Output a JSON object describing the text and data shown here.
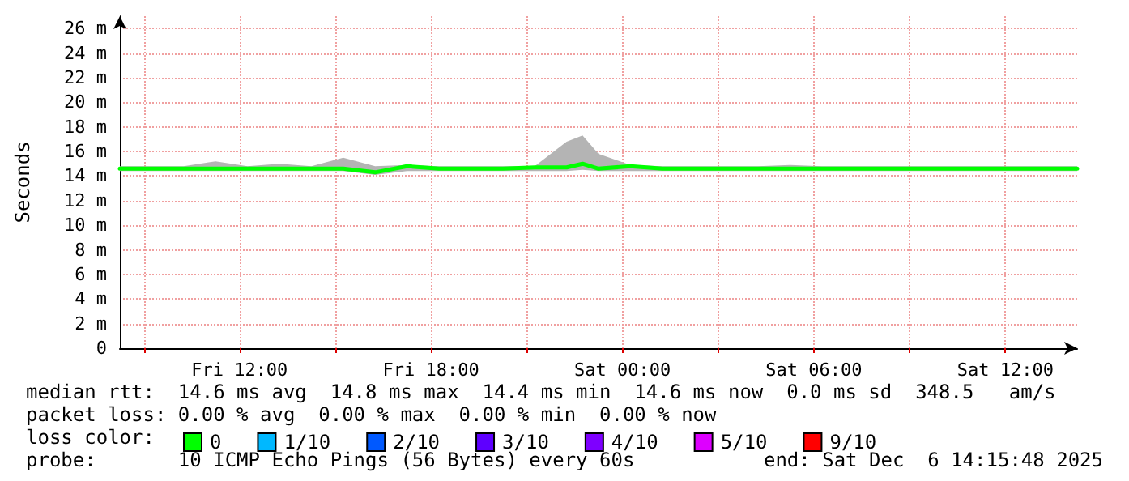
{
  "chart_data": {
    "type": "line",
    "ylabel": "Seconds",
    "legend_title": "loss color:",
    "legend": "bottom",
    "grid": true,
    "marker": "none",
    "line_style": "solid",
    "x": [
      "2025-12-05T08:15",
      "2025-12-05T09:15",
      "2025-12-05T10:15",
      "2025-12-05T11:15",
      "2025-12-05T12:15",
      "2025-12-05T13:15",
      "2025-12-05T14:15",
      "2025-12-05T15:15",
      "2025-12-05T16:15",
      "2025-12-05T17:15",
      "2025-12-05T18:15",
      "2025-12-05T19:15",
      "2025-12-05T20:15",
      "2025-12-05T21:15",
      "2025-12-05T22:15",
      "2025-12-05T22:45",
      "2025-12-05T23:15",
      "2025-12-06T00:15",
      "2025-12-06T01:15",
      "2025-12-06T02:15",
      "2025-12-06T03:15",
      "2025-12-06T04:15",
      "2025-12-06T05:15",
      "2025-12-06T06:15",
      "2025-12-06T07:15",
      "2025-12-06T08:15",
      "2025-12-06T09:15",
      "2025-12-06T10:15",
      "2025-12-06T11:15",
      "2025-12-06T12:15",
      "2025-12-06T13:15",
      "2025-12-06T14:15"
    ],
    "xlim": [
      "2025-12-05T08:15",
      "2025-12-06T14:15"
    ],
    "xticks": [
      {
        "value": "2025-12-05T09:00",
        "label": null
      },
      {
        "value": "2025-12-05T12:00",
        "label": "Fri 12:00"
      },
      {
        "value": "2025-12-05T15:00",
        "label": null
      },
      {
        "value": "2025-12-05T18:00",
        "label": "Fri 18:00"
      },
      {
        "value": "2025-12-05T21:00",
        "label": null
      },
      {
        "value": "2025-12-06T00:00",
        "label": "Sat 00:00"
      },
      {
        "value": "2025-12-06T03:00",
        "label": null
      },
      {
        "value": "2025-12-06T06:00",
        "label": "Sat 06:00"
      },
      {
        "value": "2025-12-06T09:00",
        "label": null
      },
      {
        "value": "2025-12-06T12:00",
        "label": "Sat 12:00"
      }
    ],
    "ylim": [
      0,
      27
    ],
    "yticks": [
      0,
      {
        "value": 2,
        "label": "2 m"
      },
      {
        "value": 4,
        "label": "4 m"
      },
      {
        "value": 6,
        "label": "6 m"
      },
      {
        "value": 8,
        "label": "8 m"
      },
      {
        "value": 10,
        "label": "10 m"
      },
      {
        "value": 12,
        "label": "12 m"
      },
      {
        "value": 14,
        "label": "14 m"
      },
      {
        "value": 16,
        "label": "16 m"
      },
      {
        "value": 18,
        "label": "18 m"
      },
      {
        "value": 20,
        "label": "20 m"
      },
      {
        "value": 22,
        "label": "22 m"
      },
      {
        "value": 24,
        "label": "24 m"
      },
      {
        "value": 26,
        "label": "26 m"
      }
    ],
    "series": [
      {
        "name": "0",
        "color": "#00ff00",
        "values": [
          14.6,
          14.6,
          14.6,
          14.6,
          14.6,
          14.6,
          14.6,
          14.6,
          14.3,
          14.8,
          14.6,
          14.6,
          14.6,
          14.7,
          14.7,
          15.0,
          14.6,
          14.8,
          14.6,
          14.6,
          14.6,
          14.6,
          14.6,
          14.6,
          14.6,
          14.6,
          14.6,
          14.6,
          14.6,
          14.6,
          14.6,
          14.6
        ],
        "lower": [
          14.4,
          14.4,
          14.4,
          14.4,
          14.4,
          14.4,
          14.4,
          14.4,
          14.1,
          14.4,
          14.4,
          14.4,
          14.4,
          14.4,
          14.4,
          14.5,
          14.4,
          14.4,
          14.4,
          14.4,
          14.4,
          14.4,
          14.4,
          14.4,
          14.4,
          14.4,
          14.4,
          14.4,
          14.4,
          14.4,
          14.4,
          14.4
        ],
        "upper": [
          14.8,
          14.8,
          14.8,
          15.2,
          14.8,
          15.0,
          14.8,
          15.5,
          14.8,
          14.9,
          14.8,
          14.8,
          14.8,
          14.8,
          16.8,
          17.3,
          15.8,
          14.9,
          14.8,
          14.8,
          14.8,
          14.8,
          14.9,
          14.8,
          14.8,
          14.8,
          14.8,
          14.8,
          14.8,
          14.8,
          14.8,
          14.8
        ]
      },
      {
        "name": "1/10",
        "color": "#00b8ff",
        "values": [
          null,
          null,
          null,
          null,
          null,
          null,
          null,
          null,
          null,
          null,
          null,
          null,
          null,
          null,
          null,
          null,
          null,
          null,
          null,
          null,
          null,
          null,
          null,
          null,
          null,
          null,
          null,
          null,
          null,
          null,
          null,
          null
        ]
      },
      {
        "name": "2/10",
        "color": "#0059ff",
        "values": [
          null,
          null,
          null,
          null,
          null,
          null,
          null,
          null,
          null,
          null,
          null,
          null,
          null,
          null,
          null,
          null,
          null,
          null,
          null,
          null,
          null,
          null,
          null,
          null,
          null,
          null,
          null,
          null,
          null,
          null,
          null,
          null
        ]
      },
      {
        "name": "3/10",
        "color": "#5e00ff",
        "values": [
          null,
          null,
          null,
          null,
          null,
          null,
          null,
          null,
          null,
          null,
          null,
          null,
          null,
          null,
          null,
          null,
          null,
          null,
          null,
          null,
          null,
          null,
          null,
          null,
          null,
          null,
          null,
          null,
          null,
          null,
          null,
          null
        ]
      },
      {
        "name": "4/10",
        "color": "#7e00ff",
        "values": [
          null,
          null,
          null,
          null,
          null,
          null,
          null,
          null,
          null,
          null,
          null,
          null,
          null,
          null,
          null,
          null,
          null,
          null,
          null,
          null,
          null,
          null,
          null,
          null,
          null,
          null,
          null,
          null,
          null,
          null,
          null,
          null
        ]
      },
      {
        "name": "5/10",
        "color": "#dd00ff",
        "values": [
          null,
          null,
          null,
          null,
          null,
          null,
          null,
          null,
          null,
          null,
          null,
          null,
          null,
          null,
          null,
          null,
          null,
          null,
          null,
          null,
          null,
          null,
          null,
          null,
          null,
          null,
          null,
          null,
          null,
          null,
          null,
          null
        ]
      },
      {
        "name": "9/10",
        "color": "#ff0000",
        "values": [
          null,
          null,
          null,
          null,
          null,
          null,
          null,
          null,
          null,
          null,
          null,
          null,
          null,
          null,
          null,
          null,
          null,
          null,
          null,
          null,
          null,
          null,
          null,
          null,
          null,
          null,
          null,
          null,
          null,
          null,
          null,
          null
        ]
      }
    ],
    "annotations": [
      "median rtt:  14.6 ms avg  14.8 ms max  14.4 ms min  14.6 ms now  0.0 ms sd  348.5   am/s",
      "packet loss: 0.00 % avg  0.00 % max  0.00 % min  0.00 % now",
      "probe:       10 ICMP Echo Pings (56 Bytes) every 60s",
      "end: Sat Dec  6 14:15:48 2025"
    ]
  }
}
